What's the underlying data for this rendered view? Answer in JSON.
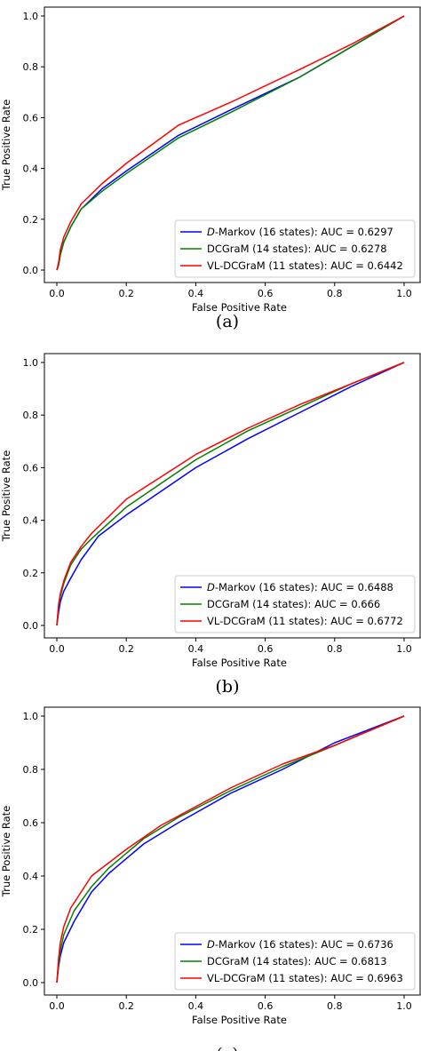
{
  "chart_data": [
    {
      "type": "line",
      "caption": "(a)",
      "xlabel": "False Positive Rate",
      "ylabel": "True Positive Rate",
      "xlim": [
        0,
        1
      ],
      "ylim": [
        0,
        1
      ],
      "xticks": [
        "0.0",
        "0.2",
        "0.4",
        "0.6",
        "0.8",
        "1.0"
      ],
      "yticks": [
        "0.0",
        "0.2",
        "0.4",
        "0.6",
        "0.8",
        "1.0"
      ],
      "legend_placement": "lower-right",
      "series": [
        {
          "name_italic": "D",
          "name": "-Markov (16 states): AUC = 0.6297",
          "color": "#0000ff",
          "x": [
            0,
            0.005,
            0.01,
            0.02,
            0.04,
            0.07,
            0.13,
            0.2,
            0.35,
            0.5,
            0.7,
            0.85,
            1.0
          ],
          "y": [
            0,
            0.02,
            0.06,
            0.11,
            0.17,
            0.24,
            0.32,
            0.39,
            0.53,
            0.63,
            0.76,
            0.88,
            1.0
          ]
        },
        {
          "name": "DCGraM (14 states): AUC = 0.6278",
          "color": "#008000",
          "x": [
            0,
            0.005,
            0.01,
            0.02,
            0.04,
            0.07,
            0.13,
            0.2,
            0.35,
            0.5,
            0.7,
            0.85,
            1.0
          ],
          "y": [
            0,
            0.02,
            0.06,
            0.11,
            0.17,
            0.24,
            0.31,
            0.38,
            0.52,
            0.62,
            0.76,
            0.88,
            1.0
          ]
        },
        {
          "name": "VL-DCGraM (11 states): AUC = 0.6442",
          "color": "#ff0000",
          "x": [
            0,
            0.005,
            0.01,
            0.02,
            0.04,
            0.07,
            0.13,
            0.2,
            0.35,
            0.5,
            0.7,
            0.85,
            1.0
          ],
          "y": [
            0,
            0.03,
            0.08,
            0.13,
            0.19,
            0.26,
            0.34,
            0.42,
            0.57,
            0.66,
            0.79,
            0.89,
            1.0
          ]
        }
      ]
    },
    {
      "type": "line",
      "caption": "(b)",
      "xlabel": "False Positive Rate",
      "ylabel": "True Positive Rate",
      "xlim": [
        0,
        1
      ],
      "ylim": [
        0,
        1
      ],
      "xticks": [
        "0.0",
        "0.2",
        "0.4",
        "0.6",
        "0.8",
        "1.0"
      ],
      "yticks": [
        "0.0",
        "0.2",
        "0.4",
        "0.6",
        "0.8",
        "1.0"
      ],
      "legend_placement": "lower-right",
      "series": [
        {
          "name_italic": "D",
          "name": "-Markov (16 states): AUC = 0.6488",
          "color": "#0000ff",
          "x": [
            0,
            0.005,
            0.01,
            0.02,
            0.04,
            0.07,
            0.12,
            0.2,
            0.4,
            0.55,
            0.7,
            0.85,
            1.0
          ],
          "y": [
            0,
            0.05,
            0.09,
            0.13,
            0.18,
            0.25,
            0.34,
            0.42,
            0.6,
            0.71,
            0.81,
            0.91,
            1.0
          ]
        },
        {
          "name": "DCGraM (14 states): AUC = 0.666",
          "color": "#008000",
          "x": [
            0,
            0.005,
            0.01,
            0.02,
            0.04,
            0.07,
            0.1,
            0.2,
            0.4,
            0.55,
            0.7,
            0.85,
            1.0
          ],
          "y": [
            0,
            0.07,
            0.11,
            0.16,
            0.23,
            0.29,
            0.33,
            0.45,
            0.63,
            0.74,
            0.83,
            0.92,
            1.0
          ]
        },
        {
          "name": "VL-DCGraM (11 states): AUC = 0.6772",
          "color": "#ff0000",
          "x": [
            0,
            0.005,
            0.01,
            0.02,
            0.04,
            0.07,
            0.1,
            0.2,
            0.4,
            0.55,
            0.7,
            0.85,
            1.0
          ],
          "y": [
            0,
            0.08,
            0.12,
            0.17,
            0.24,
            0.3,
            0.35,
            0.48,
            0.65,
            0.75,
            0.84,
            0.92,
            1.0
          ]
        }
      ]
    },
    {
      "type": "line",
      "caption": "(c)",
      "xlabel": "False Positive Rate",
      "ylabel": "True Positive Rate",
      "xlim": [
        0,
        1
      ],
      "ylim": [
        0,
        1
      ],
      "xticks": [
        "0.0",
        "0.2",
        "0.4",
        "0.6",
        "0.8",
        "1.0"
      ],
      "yticks": [
        "0.0",
        "0.2",
        "0.4",
        "0.6",
        "0.8",
        "1.0"
      ],
      "legend_placement": "lower-right",
      "series": [
        {
          "name_italic": "D",
          "name": "-Markov (16 states): AUC = 0.6736",
          "color": "#0000ff",
          "x": [
            0,
            0.005,
            0.01,
            0.02,
            0.05,
            0.1,
            0.15,
            0.25,
            0.35,
            0.5,
            0.65,
            0.8,
            1.0
          ],
          "y": [
            0,
            0.06,
            0.1,
            0.15,
            0.23,
            0.34,
            0.41,
            0.52,
            0.6,
            0.71,
            0.8,
            0.9,
            1.0
          ]
        },
        {
          "name": "DCGraM (14 states): AUC = 0.6813",
          "color": "#008000",
          "x": [
            0,
            0.005,
            0.01,
            0.02,
            0.05,
            0.1,
            0.15,
            0.25,
            0.35,
            0.5,
            0.65,
            0.8,
            1.0
          ],
          "y": [
            0,
            0.07,
            0.12,
            0.18,
            0.27,
            0.36,
            0.43,
            0.54,
            0.62,
            0.72,
            0.81,
            0.89,
            1.0
          ]
        },
        {
          "name": "VL-DCGraM (11 states): AUC = 0.6963",
          "color": "#ff0000",
          "x": [
            0,
            0.005,
            0.01,
            0.02,
            0.04,
            0.1,
            0.15,
            0.2,
            0.3,
            0.5,
            0.65,
            0.8,
            1.0
          ],
          "y": [
            0,
            0.09,
            0.15,
            0.21,
            0.28,
            0.4,
            0.45,
            0.5,
            0.59,
            0.73,
            0.82,
            0.89,
            1.0
          ]
        }
      ]
    }
  ]
}
